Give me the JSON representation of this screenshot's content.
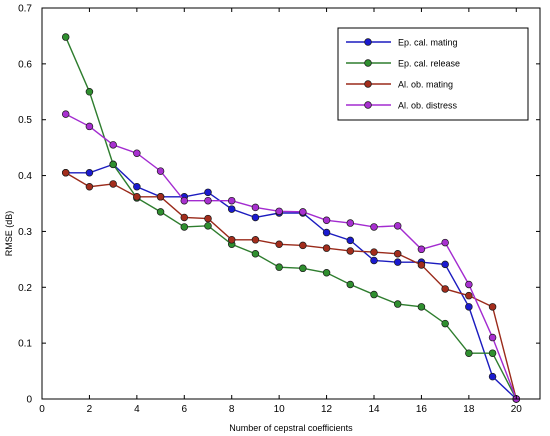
{
  "chart_data": {
    "type": "line",
    "title": "",
    "xlabel": "Number  of cepstral coefficients",
    "ylabel": "RMSE (dB)",
    "xlim": [
      0,
      21
    ],
    "ylim": [
      0,
      0.7
    ],
    "xticks": [
      0,
      2,
      4,
      6,
      8,
      10,
      12,
      14,
      16,
      18,
      20
    ],
    "yticks": [
      0,
      0.1,
      0.2,
      0.3,
      0.4,
      0.5,
      0.6,
      0.7
    ],
    "xtick_labels": [
      "0",
      "2",
      "4",
      "6",
      "8",
      "10",
      "12",
      "14",
      "16",
      "18",
      "20"
    ],
    "ytick_labels": [
      "0",
      "0.1",
      "0.2",
      "0.3",
      "0.4",
      "0.5",
      "0.6",
      "0.7"
    ],
    "grid": false,
    "legend_position": "top-right",
    "x": [
      1,
      2,
      3,
      4,
      5,
      6,
      7,
      8,
      9,
      10,
      11,
      12,
      13,
      14,
      15,
      16,
      17,
      18,
      19,
      20
    ],
    "series": [
      {
        "name": "Ep. cal. mating",
        "color": "#1b1bbf",
        "marker_color": "#1a1ad0",
        "values": [
          0.405,
          0.405,
          0.42,
          0.38,
          0.362,
          0.362,
          0.37,
          0.34,
          0.325,
          0.333,
          0.333,
          0.298,
          0.284,
          0.248,
          0.245,
          0.245,
          0.241,
          0.165,
          0.04,
          0.0
        ]
      },
      {
        "name": "Ep. cal. release",
        "color": "#2e7d2e",
        "marker_color": "#2f8f2f",
        "values": [
          0.648,
          0.55,
          0.42,
          0.36,
          0.335,
          0.308,
          0.31,
          0.277,
          0.26,
          0.236,
          0.234,
          0.226,
          0.205,
          0.187,
          0.17,
          0.165,
          0.135,
          0.082,
          0.082,
          0.0
        ]
      },
      {
        "name": "Al. ob. mating",
        "color": "#9a2a1a",
        "marker_color": "#a32d1c",
        "values": [
          0.405,
          0.38,
          0.385,
          0.362,
          0.362,
          0.325,
          0.323,
          0.285,
          0.285,
          0.277,
          0.275,
          0.27,
          0.265,
          0.263,
          0.26,
          0.24,
          0.197,
          0.185,
          0.165,
          0.0
        ]
      },
      {
        "name": "Al. ob. distress",
        "color": "#a32bd0",
        "marker_color": "#a830d0",
        "values": [
          0.51,
          0.488,
          0.455,
          0.44,
          0.408,
          0.355,
          0.355,
          0.355,
          0.343,
          0.336,
          0.335,
          0.32,
          0.315,
          0.308,
          0.31,
          0.268,
          0.28,
          0.205,
          0.11,
          0.0
        ]
      }
    ]
  }
}
